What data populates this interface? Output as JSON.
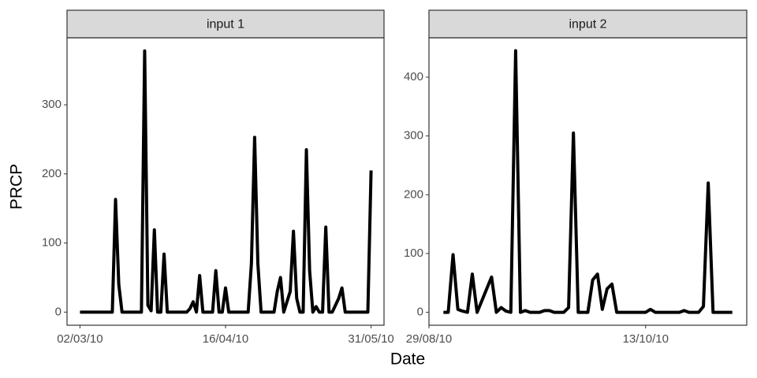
{
  "x_label": "Date",
  "y_label": "PRCP",
  "chart_data": [
    {
      "type": "line",
      "title": "input 1",
      "color": "#000000",
      "x": [
        "02/03/10",
        "12/03/10",
        "13/03/10",
        "14/03/10",
        "15/03/10",
        "21/03/10",
        "22/03/10",
        "23/03/10",
        "24/03/10",
        "25/03/10",
        "26/03/10",
        "27/03/10",
        "28/03/10",
        "29/03/10",
        "04/04/10",
        "05/04/10",
        "06/04/10",
        "07/04/10",
        "08/04/10",
        "09/04/10",
        "12/04/10",
        "13/04/10",
        "14/04/10",
        "15/04/10",
        "16/04/10",
        "17/04/10",
        "23/04/10",
        "24/04/10",
        "25/04/10",
        "26/04/10",
        "27/04/10",
        "01/05/10",
        "02/05/10",
        "03/05/10",
        "04/05/10",
        "06/05/10",
        "07/05/10",
        "08/05/10",
        "09/05/10",
        "10/05/10",
        "11/05/10",
        "12/05/10",
        "13/05/10",
        "14/05/10",
        "15/05/10",
        "16/05/10",
        "17/05/10",
        "18/05/10",
        "19/05/10",
        "21/05/10",
        "22/05/10",
        "23/05/10",
        "30/05/10",
        "31/05/10"
      ],
      "values": [
        0,
        0,
        163,
        40,
        0,
        0,
        378,
        10,
        2,
        119,
        0,
        0,
        84,
        0,
        0,
        5,
        15,
        0,
        53,
        0,
        0,
        60,
        0,
        0,
        35,
        0,
        0,
        70,
        253,
        70,
        0,
        0,
        30,
        50,
        0,
        30,
        117,
        20,
        0,
        0,
        235,
        60,
        0,
        8,
        0,
        0,
        123,
        0,
        0,
        20,
        35,
        0,
        0,
        205
      ],
      "xlim": [
        "26/02/10",
        "04/06/10"
      ],
      "xticks": [
        "02/03/10",
        "16/04/10",
        "31/05/10"
      ],
      "ylim": [
        -19,
        397
      ],
      "yticks": [
        0,
        100,
        200,
        300
      ]
    },
    {
      "type": "line",
      "title": "input 2",
      "color": "#000000",
      "x": [
        "01/09/10",
        "02/09/10",
        "03/09/10",
        "04/09/10",
        "05/09/10",
        "06/09/10",
        "07/09/10",
        "08/09/10",
        "11/09/10",
        "12/09/10",
        "13/09/10",
        "14/09/10",
        "15/09/10",
        "16/09/10",
        "17/09/10",
        "18/09/10",
        "19/09/10",
        "21/09/10",
        "22/09/10",
        "23/09/10",
        "24/09/10",
        "26/09/10",
        "27/09/10",
        "28/09/10",
        "29/09/10",
        "01/10/10",
        "02/10/10",
        "03/10/10",
        "04/10/10",
        "05/10/10",
        "06/10/10",
        "07/10/10",
        "13/10/10",
        "14/10/10",
        "15/10/10",
        "20/10/10",
        "21/10/10",
        "22/10/10",
        "24/10/10",
        "25/10/10",
        "26/10/10",
        "27/10/10",
        "31/10/10"
      ],
      "values": [
        0,
        0,
        98,
        5,
        2,
        0,
        65,
        0,
        60,
        0,
        8,
        2,
        0,
        445,
        0,
        3,
        0,
        0,
        3,
        3,
        0,
        0,
        8,
        305,
        0,
        0,
        55,
        65,
        5,
        40,
        48,
        0,
        0,
        5,
        0,
        0,
        3,
        0,
        0,
        10,
        220,
        0,
        0
      ],
      "xlim": [
        "29/08/10",
        "03/11/10"
      ],
      "xticks": [
        "29/08/10",
        "13/10/10"
      ],
      "ylim": [
        -22,
        467
      ],
      "yticks": [
        0,
        100,
        200,
        300,
        400
      ]
    }
  ]
}
